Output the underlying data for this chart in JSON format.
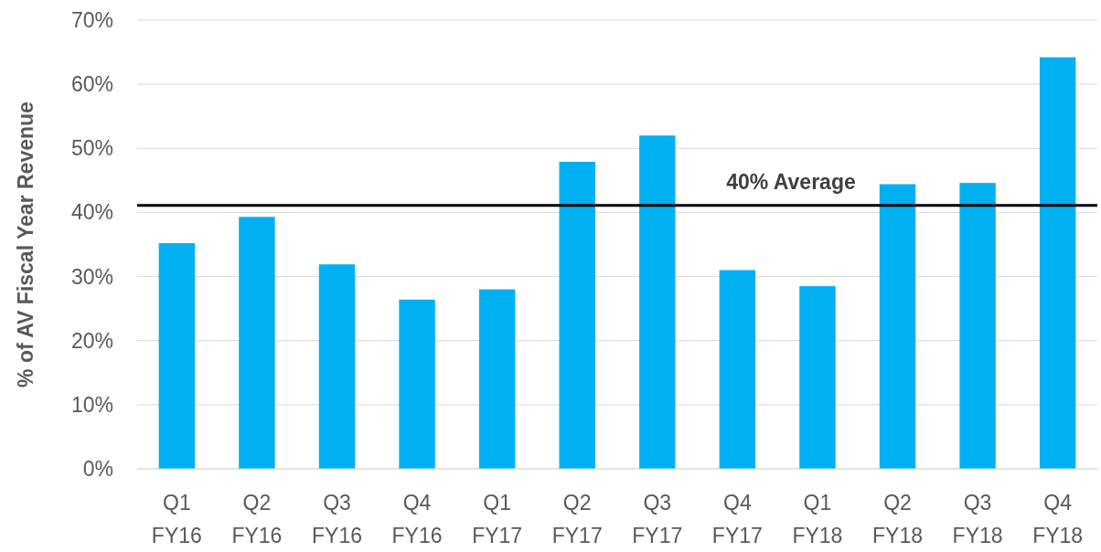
{
  "chart_data": {
    "type": "bar",
    "ylabel": "% of AV Fiscal Year Revenue",
    "categories": [
      "Q1\nFY16",
      "Q2\nFY16",
      "Q3\nFY16",
      "Q4\nFY16",
      "Q1\nFY17",
      "Q2\nFY17",
      "Q3\nFY17",
      "Q4\nFY17",
      "Q1\nFY18",
      "Q2\nFY18",
      "Q3\nFY18",
      "Q4\nFY18"
    ],
    "values": [
      35.2,
      39.3,
      31.9,
      26.4,
      28,
      47.9,
      52,
      31,
      28.5,
      44.4,
      44.6,
      64.2
    ],
    "color": "#00b0f0",
    "ylim": [
      0,
      70
    ],
    "yticks": [
      {
        "value": 0,
        "label": "0%"
      },
      {
        "value": 10,
        "label": "10%"
      },
      {
        "value": 20,
        "label": "20%"
      },
      {
        "value": 30,
        "label": "30%"
      },
      {
        "value": 40,
        "label": "40%"
      },
      {
        "value": 50,
        "label": "50%"
      },
      {
        "value": 60,
        "label": "60%"
      },
      {
        "value": 70,
        "label": "70%"
      }
    ],
    "grid": "y",
    "ref_lines": [
      {
        "axis": "y",
        "value": 41.1,
        "label": "40% Average",
        "color": "#000000"
      }
    ]
  }
}
